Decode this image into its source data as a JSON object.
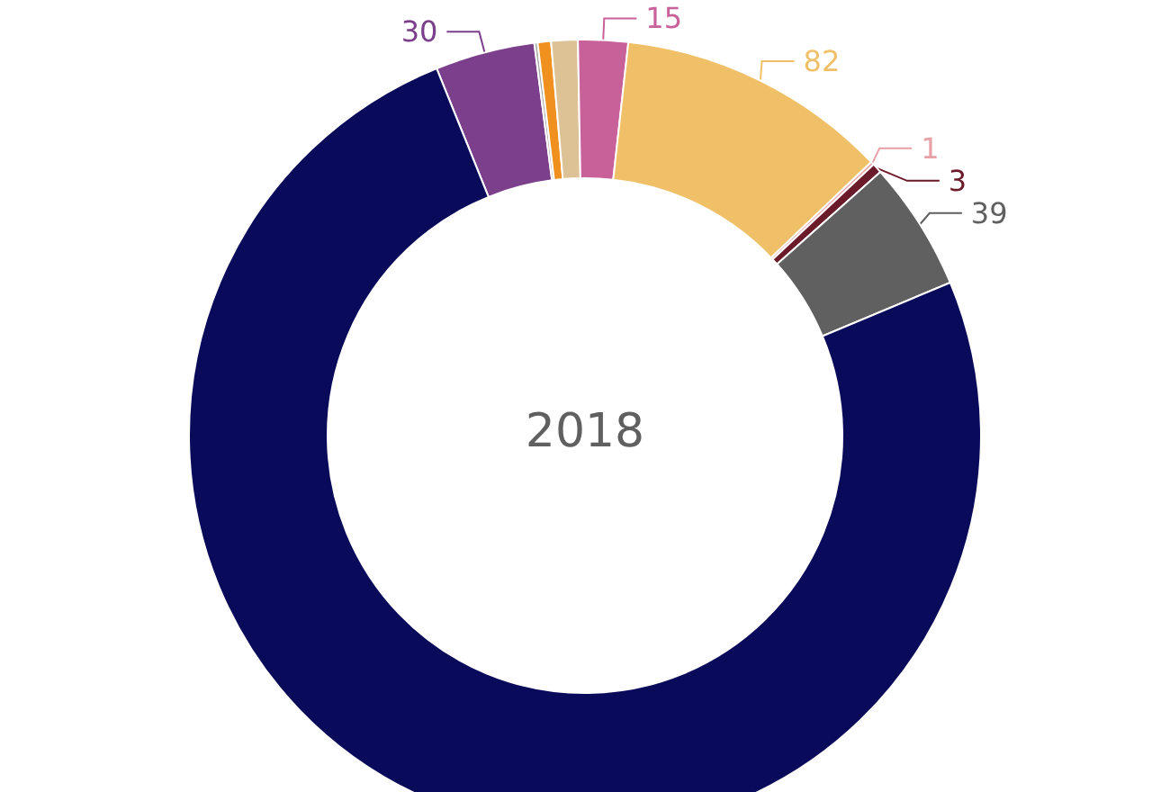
{
  "chart_data": {
    "type": "donut",
    "title": "2018",
    "categories": [
      null,
      null,
      null,
      null,
      null,
      null,
      null,
      null,
      null,
      null
    ],
    "values": [
      30,
      1,
      4,
      8,
      15,
      82,
      1,
      3,
      39,
      555
    ],
    "value_labels": [
      "30",
      null,
      null,
      null,
      "15",
      "82",
      "1",
      "3",
      "39",
      null
    ],
    "colors": [
      "#7b3f8c",
      "#a8a8a8",
      "#f0901e",
      "#dcc294",
      "#c8609a",
      "#f0c068",
      "#e8a0a8",
      "#6b1a2a",
      "#606060",
      "#0a0a5a"
    ]
  }
}
